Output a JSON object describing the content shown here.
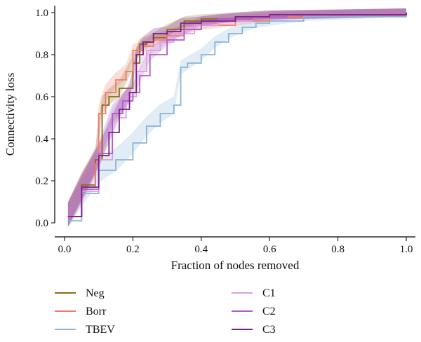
{
  "chart_data": {
    "type": "line",
    "title": "",
    "xlabel": "Fraction of nodes removed",
    "ylabel": "Connectivity loss",
    "xlim": [
      0.0,
      1.0
    ],
    "ylim": [
      0.0,
      1.0
    ],
    "xticks": [
      0.0,
      0.2,
      0.4,
      0.6,
      0.8,
      1.0
    ],
    "yticks": [
      0.0,
      0.2,
      0.4,
      0.6,
      0.8,
      1.0
    ],
    "xtick_labels": [
      "0.0",
      "0.2",
      "0.4",
      "0.6",
      "0.8",
      "1.0"
    ],
    "ytick_labels": [
      "0.0",
      "0.2",
      "0.4",
      "0.6",
      "0.8",
      "1.0"
    ],
    "grid": false,
    "legend_placement": "bottom",
    "series": [
      {
        "name": "Neg",
        "color": "#8B6A14",
        "x": [
          0.01,
          0.05,
          0.09,
          0.11,
          0.13,
          0.16,
          0.2,
          0.22,
          0.24,
          0.26,
          0.3,
          0.35,
          0.4,
          0.5,
          0.6,
          0.7,
          1.0
        ],
        "y": [
          0.03,
          0.18,
          0.3,
          0.56,
          0.6,
          0.64,
          0.76,
          0.85,
          0.86,
          0.88,
          0.92,
          0.96,
          0.97,
          0.98,
          0.99,
          0.99,
          1.0
        ]
      },
      {
        "name": "Borr",
        "color": "#F07A6A",
        "x": [
          0.01,
          0.05,
          0.09,
          0.1,
          0.12,
          0.15,
          0.18,
          0.2,
          0.23,
          0.26,
          0.3,
          0.35,
          0.4,
          0.5,
          0.6,
          0.7,
          1.0
        ],
        "y": [
          0.03,
          0.17,
          0.28,
          0.52,
          0.62,
          0.68,
          0.72,
          0.82,
          0.84,
          0.87,
          0.89,
          0.92,
          0.94,
          0.96,
          0.98,
          0.99,
          1.0
        ]
      },
      {
        "name": "TBEV",
        "color": "#8AB4D8",
        "x": [
          0.01,
          0.05,
          0.1,
          0.15,
          0.2,
          0.24,
          0.28,
          0.32,
          0.34,
          0.36,
          0.4,
          0.44,
          0.48,
          0.52,
          0.56,
          0.6,
          0.7,
          1.0
        ],
        "y": [
          0.01,
          0.14,
          0.25,
          0.3,
          0.38,
          0.46,
          0.52,
          0.56,
          0.74,
          0.76,
          0.8,
          0.86,
          0.9,
          0.93,
          0.95,
          0.96,
          0.98,
          1.0
        ]
      },
      {
        "name": "C1",
        "color": "#D9A0DC",
        "x": [
          0.01,
          0.05,
          0.1,
          0.14,
          0.18,
          0.21,
          0.24,
          0.28,
          0.32,
          0.38,
          0.45,
          0.55,
          0.65,
          1.0
        ],
        "y": [
          0.03,
          0.15,
          0.3,
          0.5,
          0.6,
          0.72,
          0.82,
          0.86,
          0.9,
          0.94,
          0.96,
          0.98,
          0.99,
          1.0
        ]
      },
      {
        "name": "C2",
        "color": "#B05CC8",
        "x": [
          0.01,
          0.05,
          0.1,
          0.14,
          0.17,
          0.2,
          0.22,
          0.25,
          0.3,
          0.35,
          0.4,
          0.45,
          0.55,
          0.65,
          1.0
        ],
        "y": [
          0.03,
          0.16,
          0.33,
          0.52,
          0.58,
          0.62,
          0.7,
          0.8,
          0.87,
          0.92,
          0.96,
          0.97,
          0.98,
          0.99,
          1.0
        ]
      },
      {
        "name": "C3",
        "color": "#7A1E8A",
        "x": [
          0.01,
          0.05,
          0.1,
          0.13,
          0.16,
          0.19,
          0.21,
          0.23,
          0.26,
          0.3,
          0.34,
          0.4,
          0.5,
          0.6,
          1.0
        ],
        "y": [
          0.03,
          0.17,
          0.32,
          0.43,
          0.54,
          0.62,
          0.8,
          0.86,
          0.9,
          0.91,
          0.95,
          0.96,
          0.98,
          0.99,
          1.0
        ]
      }
    ]
  }
}
